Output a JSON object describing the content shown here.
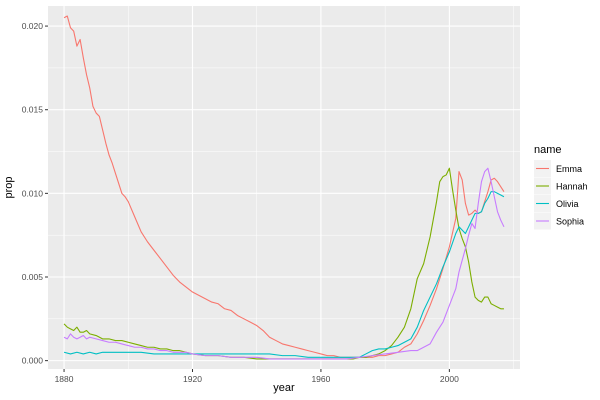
{
  "chart_data": {
    "type": "line",
    "xlabel": "year",
    "ylabel": "prop",
    "xlim": [
      1875,
      2022
    ],
    "ylim": [
      -0.0005,
      0.0212
    ],
    "x_ticks": [
      1880,
      1920,
      1960,
      2000
    ],
    "x_tick_labels": [
      "1880",
      "1920",
      "1960",
      "2000"
    ],
    "y_ticks": [
      0.0,
      0.005,
      0.01,
      0.015,
      0.02
    ],
    "y_tick_labels": [
      "0.000",
      "0.005",
      "0.010",
      "0.015",
      "0.020"
    ],
    "grid": true,
    "panel_background": "#ebebeb",
    "grid_color": "#ffffff",
    "legend": {
      "title": "name",
      "position": "right",
      "entries": [
        "Emma",
        "Hannah",
        "Olivia",
        "Sophia"
      ]
    },
    "series": [
      {
        "name": "Emma",
        "color": "#f8766d",
        "points": [
          [
            1880,
            0.0205
          ],
          [
            1881,
            0.0206
          ],
          [
            1882,
            0.0199
          ],
          [
            1883,
            0.0197
          ],
          [
            1884,
            0.0188
          ],
          [
            1885,
            0.0192
          ],
          [
            1886,
            0.0181
          ],
          [
            1887,
            0.0171
          ],
          [
            1888,
            0.0163
          ],
          [
            1889,
            0.0152
          ],
          [
            1890,
            0.0148
          ],
          [
            1891,
            0.0146
          ],
          [
            1892,
            0.0138
          ],
          [
            1893,
            0.013
          ],
          [
            1894,
            0.0123
          ],
          [
            1895,
            0.0118
          ],
          [
            1896,
            0.0112
          ],
          [
            1897,
            0.0106
          ],
          [
            1898,
            0.01
          ],
          [
            1899,
            0.0098
          ],
          [
            1900,
            0.0095
          ],
          [
            1902,
            0.0086
          ],
          [
            1904,
            0.0077
          ],
          [
            1906,
            0.0071
          ],
          [
            1908,
            0.0066
          ],
          [
            1910,
            0.0061
          ],
          [
            1912,
            0.0056
          ],
          [
            1914,
            0.0051
          ],
          [
            1916,
            0.0047
          ],
          [
            1918,
            0.0044
          ],
          [
            1920,
            0.0041
          ],
          [
            1922,
            0.0039
          ],
          [
            1924,
            0.0037
          ],
          [
            1926,
            0.0035
          ],
          [
            1928,
            0.0034
          ],
          [
            1930,
            0.0031
          ],
          [
            1932,
            0.003
          ],
          [
            1934,
            0.0027
          ],
          [
            1936,
            0.0025
          ],
          [
            1938,
            0.0023
          ],
          [
            1940,
            0.0021
          ],
          [
            1942,
            0.0018
          ],
          [
            1944,
            0.0014
          ],
          [
            1946,
            0.0012
          ],
          [
            1948,
            0.001
          ],
          [
            1950,
            0.0009
          ],
          [
            1952,
            0.0008
          ],
          [
            1954,
            0.0007
          ],
          [
            1956,
            0.0006
          ],
          [
            1958,
            0.0005
          ],
          [
            1960,
            0.0004
          ],
          [
            1962,
            0.0003
          ],
          [
            1964,
            0.0003
          ],
          [
            1966,
            0.0002
          ],
          [
            1968,
            0.0002
          ],
          [
            1970,
            0.0002
          ],
          [
            1972,
            0.0002
          ],
          [
            1974,
            0.0002
          ],
          [
            1976,
            0.0002
          ],
          [
            1978,
            0.0003
          ],
          [
            1980,
            0.0003
          ],
          [
            1982,
            0.0004
          ],
          [
            1984,
            0.0005
          ],
          [
            1986,
            0.0008
          ],
          [
            1988,
            0.001
          ],
          [
            1990,
            0.0016
          ],
          [
            1992,
            0.0024
          ],
          [
            1994,
            0.0033
          ],
          [
            1996,
            0.0043
          ],
          [
            1998,
            0.0055
          ],
          [
            2000,
            0.0068
          ],
          [
            2002,
            0.0085
          ],
          [
            2003,
            0.0113
          ],
          [
            2004,
            0.0108
          ],
          [
            2005,
            0.0094
          ],
          [
            2006,
            0.0087
          ],
          [
            2007,
            0.0088
          ],
          [
            2008,
            0.009
          ],
          [
            2009,
            0.0088
          ],
          [
            2010,
            0.0089
          ],
          [
            2011,
            0.0095
          ],
          [
            2012,
            0.0101
          ],
          [
            2013,
            0.0108
          ],
          [
            2014,
            0.0109
          ],
          [
            2015,
            0.0107
          ],
          [
            2016,
            0.0104
          ],
          [
            2017,
            0.0101
          ]
        ]
      },
      {
        "name": "Hannah",
        "color": "#7cae00",
        "points": [
          [
            1880,
            0.0022
          ],
          [
            1881,
            0.002
          ],
          [
            1882,
            0.0019
          ],
          [
            1883,
            0.0018
          ],
          [
            1884,
            0.002
          ],
          [
            1885,
            0.0017
          ],
          [
            1886,
            0.0017
          ],
          [
            1887,
            0.0018
          ],
          [
            1888,
            0.0016
          ],
          [
            1890,
            0.0015
          ],
          [
            1892,
            0.0013
          ],
          [
            1894,
            0.0013
          ],
          [
            1896,
            0.0012
          ],
          [
            1898,
            0.0012
          ],
          [
            1900,
            0.0011
          ],
          [
            1902,
            0.001
          ],
          [
            1904,
            0.0009
          ],
          [
            1906,
            0.0008
          ],
          [
            1908,
            0.0008
          ],
          [
            1910,
            0.0007
          ],
          [
            1912,
            0.0007
          ],
          [
            1914,
            0.0006
          ],
          [
            1916,
            0.0006
          ],
          [
            1918,
            0.0005
          ],
          [
            1920,
            0.0004
          ],
          [
            1924,
            0.0003
          ],
          [
            1928,
            0.0003
          ],
          [
            1932,
            0.0002
          ],
          [
            1936,
            0.0002
          ],
          [
            1940,
            0.0001
          ],
          [
            1944,
            0.0001
          ],
          [
            1948,
            0.0001
          ],
          [
            1952,
            0.0001
          ],
          [
            1956,
            0.0001
          ],
          [
            1960,
            0.0001
          ],
          [
            1964,
            0.0001
          ],
          [
            1968,
            0.0001
          ],
          [
            1970,
            0.0001
          ],
          [
            1972,
            0.0002
          ],
          [
            1974,
            0.0002
          ],
          [
            1976,
            0.0003
          ],
          [
            1978,
            0.0004
          ],
          [
            1980,
            0.0006
          ],
          [
            1982,
            0.0009
          ],
          [
            1984,
            0.0014
          ],
          [
            1986,
            0.002
          ],
          [
            1988,
            0.0031
          ],
          [
            1990,
            0.0049
          ],
          [
            1992,
            0.0058
          ],
          [
            1994,
            0.0074
          ],
          [
            1996,
            0.0095
          ],
          [
            1997,
            0.0107
          ],
          [
            1998,
            0.011
          ],
          [
            1999,
            0.0111
          ],
          [
            2000,
            0.0115
          ],
          [
            2001,
            0.0102
          ],
          [
            2002,
            0.009
          ],
          [
            2003,
            0.0079
          ],
          [
            2004,
            0.0073
          ],
          [
            2005,
            0.0068
          ],
          [
            2006,
            0.0059
          ],
          [
            2007,
            0.0047
          ],
          [
            2008,
            0.0038
          ],
          [
            2009,
            0.0036
          ],
          [
            2010,
            0.0035
          ],
          [
            2011,
            0.0038
          ],
          [
            2012,
            0.0038
          ],
          [
            2013,
            0.0034
          ],
          [
            2014,
            0.0033
          ],
          [
            2015,
            0.0032
          ],
          [
            2016,
            0.0031
          ],
          [
            2017,
            0.0031
          ]
        ]
      },
      {
        "name": "Olivia",
        "color": "#00bfc4",
        "points": [
          [
            1880,
            0.0005
          ],
          [
            1882,
            0.0004
          ],
          [
            1884,
            0.0005
          ],
          [
            1886,
            0.0004
          ],
          [
            1888,
            0.0005
          ],
          [
            1890,
            0.0004
          ],
          [
            1892,
            0.0005
          ],
          [
            1894,
            0.0005
          ],
          [
            1896,
            0.0005
          ],
          [
            1898,
            0.0005
          ],
          [
            1900,
            0.0005
          ],
          [
            1904,
            0.0005
          ],
          [
            1908,
            0.0004
          ],
          [
            1912,
            0.0004
          ],
          [
            1916,
            0.0004
          ],
          [
            1920,
            0.0004
          ],
          [
            1924,
            0.0004
          ],
          [
            1928,
            0.0004
          ],
          [
            1932,
            0.0004
          ],
          [
            1936,
            0.0004
          ],
          [
            1940,
            0.0004
          ],
          [
            1944,
            0.0004
          ],
          [
            1948,
            0.0003
          ],
          [
            1952,
            0.0003
          ],
          [
            1956,
            0.0002
          ],
          [
            1960,
            0.0002
          ],
          [
            1964,
            0.0002
          ],
          [
            1968,
            0.0002
          ],
          [
            1972,
            0.0002
          ],
          [
            1974,
            0.0004
          ],
          [
            1976,
            0.0006
          ],
          [
            1978,
            0.0007
          ],
          [
            1980,
            0.0007
          ],
          [
            1982,
            0.0008
          ],
          [
            1984,
            0.0009
          ],
          [
            1986,
            0.0011
          ],
          [
            1988,
            0.0013
          ],
          [
            1990,
            0.002
          ],
          [
            1992,
            0.003
          ],
          [
            1994,
            0.0038
          ],
          [
            1996,
            0.0046
          ],
          [
            1998,
            0.0056
          ],
          [
            2000,
            0.0065
          ],
          [
            2002,
            0.0076
          ],
          [
            2003,
            0.008
          ],
          [
            2004,
            0.0078
          ],
          [
            2005,
            0.0076
          ],
          [
            2006,
            0.008
          ],
          [
            2007,
            0.0084
          ],
          [
            2008,
            0.0088
          ],
          [
            2009,
            0.0088
          ],
          [
            2010,
            0.0089
          ],
          [
            2011,
            0.0094
          ],
          [
            2012,
            0.0097
          ],
          [
            2013,
            0.0101
          ],
          [
            2014,
            0.0101
          ],
          [
            2015,
            0.01
          ],
          [
            2016,
            0.0099
          ],
          [
            2017,
            0.0098
          ]
        ]
      },
      {
        "name": "Sophia",
        "color": "#c77cff",
        "points": [
          [
            1880,
            0.0014
          ],
          [
            1881,
            0.0013
          ],
          [
            1882,
            0.0016
          ],
          [
            1883,
            0.0014
          ],
          [
            1884,
            0.0013
          ],
          [
            1885,
            0.0014
          ],
          [
            1886,
            0.0015
          ],
          [
            1887,
            0.0013
          ],
          [
            1888,
            0.0014
          ],
          [
            1890,
            0.0013
          ],
          [
            1892,
            0.0012
          ],
          [
            1894,
            0.0011
          ],
          [
            1896,
            0.0011
          ],
          [
            1898,
            0.001
          ],
          [
            1900,
            0.0009
          ],
          [
            1902,
            0.0008
          ],
          [
            1904,
            0.0008
          ],
          [
            1906,
            0.0007
          ],
          [
            1908,
            0.0007
          ],
          [
            1910,
            0.0006
          ],
          [
            1912,
            0.0006
          ],
          [
            1914,
            0.0005
          ],
          [
            1916,
            0.0005
          ],
          [
            1918,
            0.0005
          ],
          [
            1920,
            0.0004
          ],
          [
            1924,
            0.0003
          ],
          [
            1928,
            0.0003
          ],
          [
            1932,
            0.0002
          ],
          [
            1936,
            0.0002
          ],
          [
            1940,
            0.0002
          ],
          [
            1944,
            0.0001
          ],
          [
            1948,
            0.0001
          ],
          [
            1952,
            0.0001
          ],
          [
            1956,
            0.0001
          ],
          [
            1960,
            0.0001
          ],
          [
            1964,
            0.0001
          ],
          [
            1968,
            0.0001
          ],
          [
            1972,
            0.0002
          ],
          [
            1976,
            0.0003
          ],
          [
            1980,
            0.0004
          ],
          [
            1984,
            0.0005
          ],
          [
            1988,
            0.0006
          ],
          [
            1990,
            0.0006
          ],
          [
            1992,
            0.0008
          ],
          [
            1994,
            0.001
          ],
          [
            1996,
            0.0017
          ],
          [
            1998,
            0.0023
          ],
          [
            2000,
            0.0033
          ],
          [
            2002,
            0.0043
          ],
          [
            2003,
            0.0053
          ],
          [
            2004,
            0.006
          ],
          [
            2005,
            0.0067
          ],
          [
            2006,
            0.0075
          ],
          [
            2007,
            0.0082
          ],
          [
            2008,
            0.0079
          ],
          [
            2009,
            0.0094
          ],
          [
            2010,
            0.0107
          ],
          [
            2011,
            0.0113
          ],
          [
            2012,
            0.0115
          ],
          [
            2013,
            0.0107
          ],
          [
            2014,
            0.0098
          ],
          [
            2015,
            0.0089
          ],
          [
            2016,
            0.0084
          ],
          [
            2017,
            0.008
          ]
        ]
      }
    ]
  }
}
